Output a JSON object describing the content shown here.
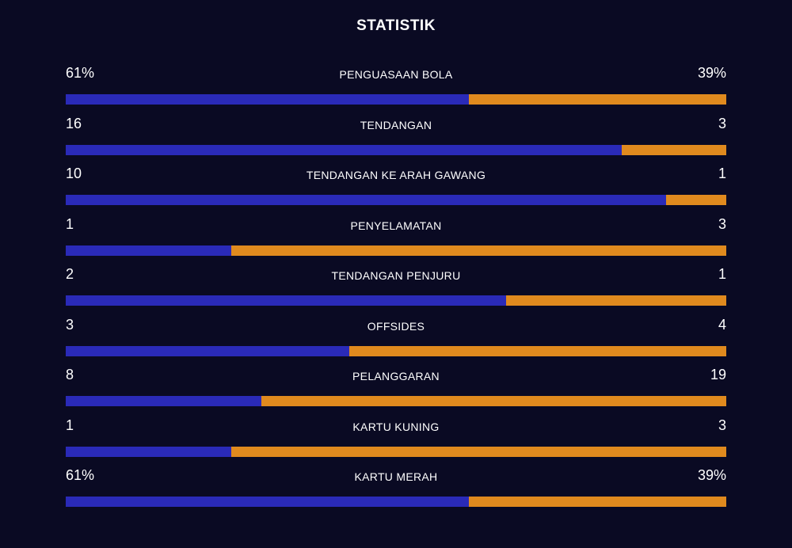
{
  "title": "STATISTIK",
  "colors": {
    "background": "#0a0a23",
    "home": "#2a2ab8",
    "away": "#e08a1e"
  },
  "stats": [
    {
      "label": "PENGUASAAN BOLA",
      "home": "61%",
      "away": "39%",
      "home_share": 0.61
    },
    {
      "label": "TENDANGAN",
      "home": "16",
      "away": "3",
      "home_share": 0.842
    },
    {
      "label": "TENDANGAN KE ARAH GAWANG",
      "home": "10",
      "away": "1",
      "home_share": 0.909
    },
    {
      "label": "PENYELAMATAN",
      "home": "1",
      "away": "3",
      "home_share": 0.25
    },
    {
      "label": "TENDANGAN PENJURU",
      "home": "2",
      "away": "1",
      "home_share": 0.667
    },
    {
      "label": "OFFSIDES",
      "home": "3",
      "away": "4",
      "home_share": 0.429
    },
    {
      "label": "PELANGGARAN",
      "home": "8",
      "away": "19",
      "home_share": 0.296
    },
    {
      "label": "KARTU KUNING",
      "home": "1",
      "away": "3",
      "home_share": 0.25
    },
    {
      "label": "KARTU MERAH",
      "home": "61%",
      "away": "39%",
      "home_share": 0.61
    }
  ]
}
